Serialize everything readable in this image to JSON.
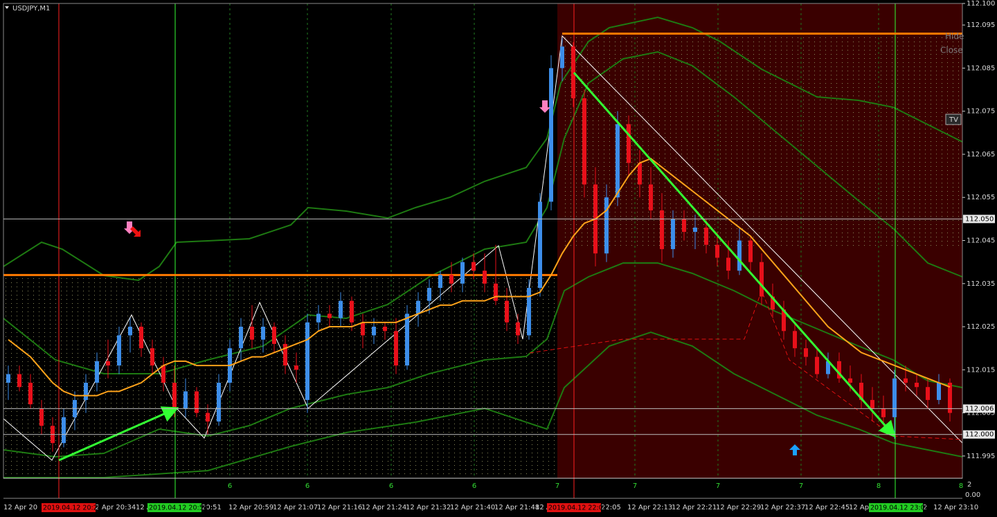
{
  "window": {
    "title": "USDJPY,M1",
    "buttons": [
      "Hide",
      "Close"
    ],
    "badge": "TV"
  },
  "chart_data": {
    "type": "candlestick",
    "up_color": "#3d8eea",
    "down_color": "#e8101a",
    "ohlc": [
      [
        112.012,
        112.016,
        112.008,
        112.014
      ],
      [
        112.014,
        112.016,
        112.01,
        112.011
      ],
      [
        112.012,
        112.014,
        112.006,
        112.007
      ],
      [
        112.006,
        112.008,
        112.0,
        112.002
      ],
      [
        112.002,
        112.004,
        111.996,
        111.998
      ],
      [
        111.998,
        112.006,
        111.997,
        112.004
      ],
      [
        112.004,
        112.01,
        112.001,
        112.008
      ],
      [
        112.008,
        112.014,
        112.005,
        112.012
      ],
      [
        112.012,
        112.019,
        112.01,
        112.017
      ],
      [
        112.017,
        112.022,
        112.013,
        112.016
      ],
      [
        112.016,
        112.025,
        112.014,
        112.023
      ],
      [
        112.023,
        112.027,
        112.019,
        112.025
      ],
      [
        112.025,
        112.026,
        112.018,
        112.02
      ],
      [
        112.02,
        112.022,
        112.014,
        112.016
      ],
      [
        112.016,
        112.018,
        112.01,
        112.012
      ],
      [
        112.012,
        112.016,
        112.004,
        112.006
      ],
      [
        112.006,
        112.013,
        112.004,
        112.01
      ],
      [
        112.01,
        112.011,
        112.004,
        112.005
      ],
      [
        112.005,
        112.007,
        112.0,
        112.003
      ],
      [
        112.003,
        112.014,
        112.002,
        112.012
      ],
      [
        112.012,
        112.022,
        112.01,
        112.02
      ],
      [
        112.02,
        112.027,
        112.017,
        112.025
      ],
      [
        112.025,
        112.03,
        112.02,
        112.022
      ],
      [
        112.022,
        112.027,
        112.019,
        112.025
      ],
      [
        112.025,
        112.026,
        112.019,
        112.021
      ],
      [
        112.021,
        112.023,
        112.014,
        112.016
      ],
      [
        112.016,
        112.019,
        112.012,
        112.015
      ],
      [
        112.008,
        112.028,
        112.005,
        112.026
      ],
      [
        112.026,
        112.03,
        112.024,
        112.028
      ],
      [
        112.028,
        112.03,
        112.025,
        112.027
      ],
      [
        112.027,
        112.033,
        112.025,
        112.031
      ],
      [
        112.031,
        112.032,
        112.024,
        112.026
      ],
      [
        112.026,
        112.028,
        112.02,
        112.023
      ],
      [
        112.023,
        112.027,
        112.021,
        112.025
      ],
      [
        112.025,
        112.026,
        112.022,
        112.024
      ],
      [
        112.024,
        112.027,
        112.014,
        112.016
      ],
      [
        112.016,
        112.03,
        112.015,
        112.028
      ],
      [
        112.028,
        112.033,
        112.025,
        112.031
      ],
      [
        112.031,
        112.036,
        112.028,
        112.034
      ],
      [
        112.034,
        112.038,
        112.031,
        112.037
      ],
      [
        112.037,
        112.04,
        112.033,
        112.035
      ],
      [
        112.035,
        112.041,
        112.033,
        112.04
      ],
      [
        112.04,
        112.042,
        112.036,
        112.038
      ],
      [
        112.038,
        112.042,
        112.033,
        112.035
      ],
      [
        112.035,
        112.044,
        112.03,
        112.031
      ],
      [
        112.031,
        112.034,
        112.024,
        112.026
      ],
      [
        112.026,
        112.028,
        112.021,
        112.023
      ],
      [
        112.023,
        112.036,
        112.022,
        112.034
      ],
      [
        112.034,
        112.056,
        112.032,
        112.054
      ],
      [
        112.054,
        112.088,
        112.052,
        112.085
      ],
      [
        112.085,
        112.092,
        112.082,
        112.09
      ],
      [
        112.09,
        112.091,
        112.076,
        112.078
      ],
      [
        112.078,
        112.08,
        112.055,
        112.058
      ],
      [
        112.058,
        112.062,
        112.039,
        112.042
      ],
      [
        112.042,
        112.058,
        112.04,
        112.055
      ],
      [
        112.055,
        112.075,
        112.053,
        112.072
      ],
      [
        112.072,
        112.074,
        112.06,
        112.063
      ],
      [
        112.063,
        112.066,
        112.055,
        112.058
      ],
      [
        112.058,
        112.062,
        112.05,
        112.052
      ],
      [
        112.052,
        112.056,
        112.04,
        112.043
      ],
      [
        112.043,
        112.052,
        112.041,
        112.05
      ],
      [
        112.05,
        112.052,
        112.045,
        112.047
      ],
      [
        112.047,
        112.051,
        112.043,
        112.048
      ],
      [
        112.048,
        112.05,
        112.042,
        112.044
      ],
      [
        112.044,
        112.047,
        112.039,
        112.041
      ],
      [
        112.041,
        112.045,
        112.036,
        112.038
      ],
      [
        112.038,
        112.048,
        112.037,
        112.045
      ],
      [
        112.045,
        112.046,
        112.038,
        112.04
      ],
      [
        112.04,
        112.042,
        112.03,
        112.032
      ],
      [
        112.032,
        112.035,
        112.027,
        112.029
      ],
      [
        112.029,
        112.031,
        112.022,
        112.024
      ],
      [
        112.024,
        112.026,
        112.018,
        112.02
      ],
      [
        112.02,
        112.022,
        112.016,
        112.018
      ],
      [
        112.018,
        112.02,
        112.013,
        112.014
      ],
      [
        112.014,
        112.019,
        112.013,
        112.017
      ],
      [
        112.017,
        112.019,
        112.012,
        112.013
      ],
      [
        112.013,
        112.016,
        112.01,
        112.012
      ],
      [
        112.012,
        112.014,
        112.006,
        112.008
      ],
      [
        112.008,
        112.011,
        112.003,
        112.006
      ],
      [
        112.006,
        112.009,
        112.002,
        112.004
      ],
      [
        112.004,
        112.015,
        111.999,
        112.013
      ],
      [
        112.013,
        112.016,
        112.01,
        112.012
      ],
      [
        112.012,
        112.014,
        112.009,
        112.011
      ],
      [
        112.011,
        112.013,
        112.006,
        112.008
      ],
      [
        112.008,
        112.014,
        112.007,
        112.012
      ],
      [
        112.012,
        112.013,
        112.003,
        112.005
      ]
    ],
    "ma": {
      "color": "#ffa31a",
      "values": [
        112.022,
        112.02,
        112.018,
        112.015,
        112.012,
        112.01,
        112.009,
        112.009,
        112.009,
        112.01,
        112.01,
        112.011,
        112.012,
        112.014,
        112.016,
        112.017,
        112.017,
        112.016,
        112.016,
        112.016,
        112.016,
        112.017,
        112.018,
        112.018,
        112.019,
        112.02,
        112.021,
        112.022,
        112.024,
        112.025,
        112.025,
        112.025,
        112.026,
        112.026,
        112.026,
        112.026,
        112.027,
        112.028,
        112.029,
        112.03,
        112.03,
        112.031,
        112.031,
        112.031,
        112.032,
        112.032,
        112.032,
        112.032,
        112.033,
        112.037,
        112.042,
        112.046,
        112.049,
        112.05,
        112.052,
        112.056,
        112.06,
        112.063,
        112.064,
        112.062,
        112.06,
        112.058,
        112.056,
        112.054,
        112.052,
        112.05,
        112.048,
        112.046,
        112.043,
        112.04,
        112.037,
        112.034,
        112.031,
        112.028,
        112.025,
        112.023,
        112.021,
        112.019,
        112.018,
        112.017,
        112.016,
        112.015,
        112.014,
        112.013,
        112.012,
        112.011
      ]
    },
    "levels": {
      "color": "#ff7a00",
      "values": [
        112.037,
        112.093
      ]
    },
    "ylim": [
      111.99,
      112.1
    ],
    "yticks": [
      {
        "value": 112.1,
        "label": "112.100"
      },
      112.095,
      112.085,
      112.075,
      112.065,
      112.055,
      112.045,
      112.035,
      112.025,
      112.015,
      112.005,
      111.995
    ],
    "price_lines": [
      {
        "value": 112.05,
        "label": "112.050"
      },
      {
        "value": 112.006,
        "label": "112.006"
      },
      {
        "value": 112.0,
        "label": "112.000"
      }
    ],
    "x_labels": [
      "12 Apr 20",
      "12 Apr 20:34",
      "12 Apr",
      "20:51",
      "12 Apr 20:59",
      "12 Apr 21:07",
      "12 Apr 21:16",
      "12 Apr 21:24",
      "12 Apr 21:32",
      "12 Apr 21:40",
      "12 Apr 21:48",
      "12 Apr",
      "22:05",
      "12 Apr 22:13",
      "12 Apr 22:21",
      "12 Apr 22:29",
      "12 Apr 22:37",
      "12 Apr 22:45",
      "12 Apr",
      "2",
      "12 Apr 23:10"
    ],
    "time_markers": [
      "2019.04.12 20:28",
      "2019.04.12 20:50",
      "2019.04.12 22:03",
      "2019.04.12 23:03"
    ],
    "period_marks": [
      "6",
      "6",
      "6",
      "6",
      "7",
      "7",
      "7",
      "7",
      "8",
      "8"
    ],
    "corner": [
      "2",
      "0.00"
    ]
  }
}
